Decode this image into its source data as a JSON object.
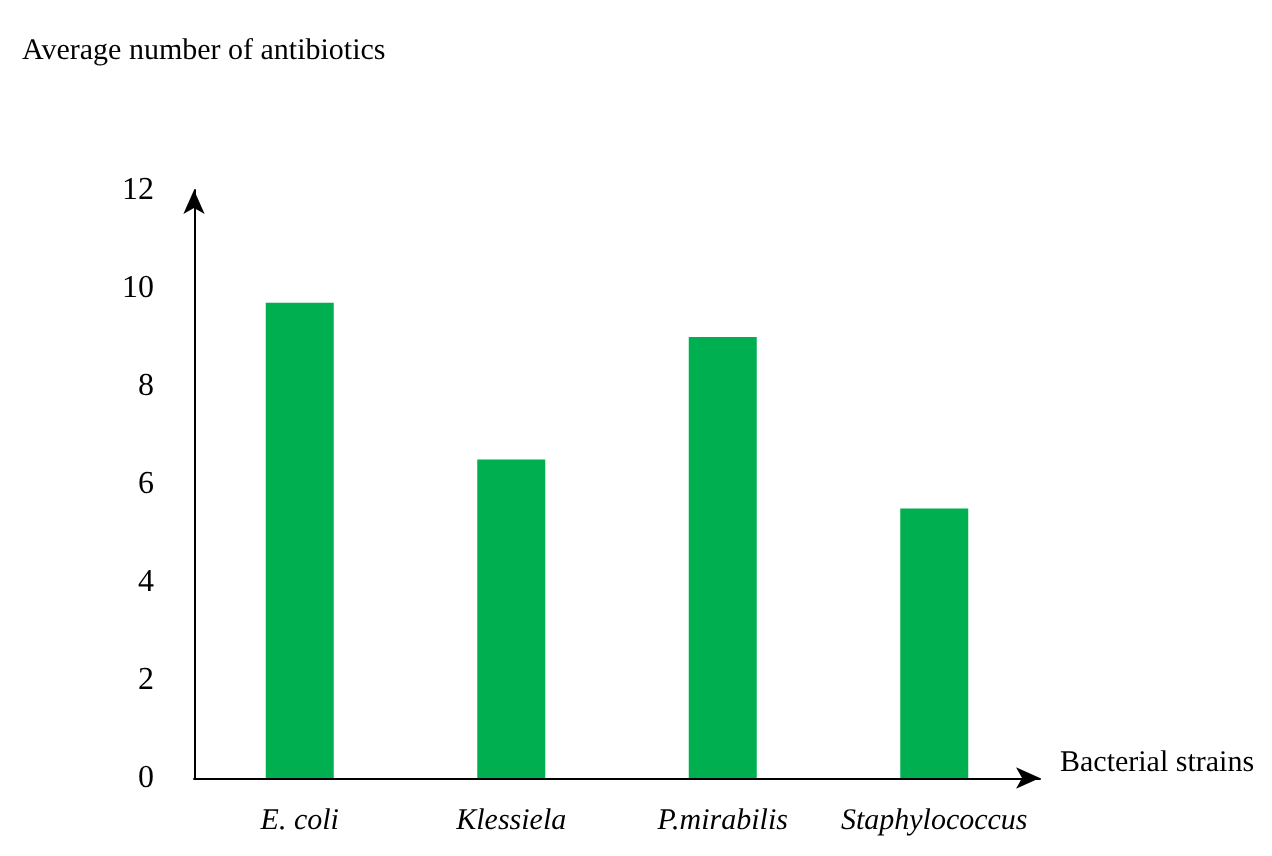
{
  "chart_data": {
    "type": "bar",
    "xlabel": "Bacterial strains",
    "ylabel": "Average number of antibiotics",
    "categories": [
      "E. coli",
      "Klessiela",
      "P.mirabilis",
      "Staphylococcus"
    ],
    "values": [
      9.7,
      6.5,
      9.0,
      5.5
    ],
    "color": "#00b050",
    "ylim": [
      0,
      12
    ],
    "yticks": [
      0,
      2,
      4,
      6,
      8,
      10,
      12
    ],
    "grid": false
  }
}
